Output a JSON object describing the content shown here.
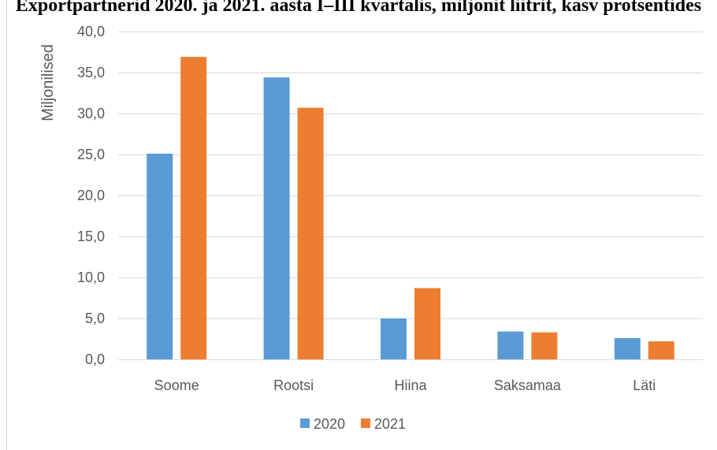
{
  "chart_data": {
    "type": "bar",
    "title": "Exportpartnerid 2020. ja 2021. aasta I–III kvartalis, miljonit liitrit, kasv protsentides",
    "ylabel": "Miljonilised",
    "xlabel": "",
    "ylim": [
      0,
      40
    ],
    "ytick_step": 5,
    "ytick_labels": [
      "0,0",
      "5,0",
      "10,0",
      "15,0",
      "20,0",
      "25,0",
      "30,0",
      "35,0",
      "40,0"
    ],
    "categories": [
      "Soome",
      "Rootsi",
      "Hiina",
      "Saksamaa",
      "Läti"
    ],
    "series": [
      {
        "name": "2020",
        "color": "#5b9bd5",
        "values": [
          25.1,
          34.4,
          5.0,
          3.4,
          2.6
        ]
      },
      {
        "name": "2021",
        "color": "#ed7d31",
        "values": [
          36.9,
          30.7,
          8.7,
          3.3,
          2.2
        ]
      }
    ],
    "grid": true,
    "legend": "bottom"
  }
}
